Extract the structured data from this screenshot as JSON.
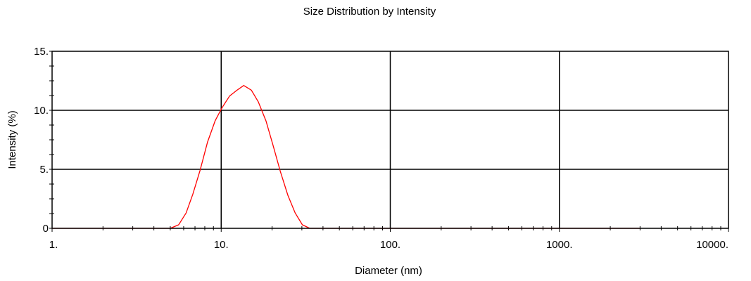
{
  "chart_data": {
    "type": "line",
    "title": "Size Distribution by Intensity",
    "xlabel": "Diameter (nm)",
    "ylabel": "Intensity (%)",
    "xscale": "log",
    "xlim": [
      1,
      10000
    ],
    "ylim": [
      0,
      15
    ],
    "grid": true,
    "x_ticks": [
      {
        "value": 1,
        "label": "1."
      },
      {
        "value": 10,
        "label": "10."
      },
      {
        "value": 100,
        "label": "100."
      },
      {
        "value": 1000,
        "label": "1000."
      },
      {
        "value": 10000,
        "label": "10000."
      }
    ],
    "y_ticks": [
      {
        "value": 0,
        "label": "0"
      },
      {
        "value": 5,
        "label": "5."
      },
      {
        "value": 10,
        "label": "10."
      },
      {
        "value": 15,
        "label": "15."
      }
    ],
    "line_color": "#ff0000",
    "series": [
      {
        "x": [
          1,
          2,
          3,
          4,
          5.0,
          5.6,
          6.2,
          6.8,
          7.5,
          8.3,
          9.2,
          10.1,
          11.2,
          12.4,
          13.6,
          15.1,
          16.6,
          18.4,
          20.3,
          22.4,
          24.8,
          27.4,
          30.2,
          33.4,
          36.9,
          40.0,
          100,
          1000,
          3000
        ],
        "y": [
          0,
          0,
          0,
          0,
          0,
          0.3,
          1.3,
          2.9,
          4.9,
          7.3,
          9.1,
          10.2,
          11.2,
          11.7,
          12.1,
          11.7,
          10.7,
          9.1,
          7.0,
          4.8,
          2.8,
          1.3,
          0.3,
          0,
          0,
          0,
          0,
          0,
          0
        ]
      }
    ]
  }
}
